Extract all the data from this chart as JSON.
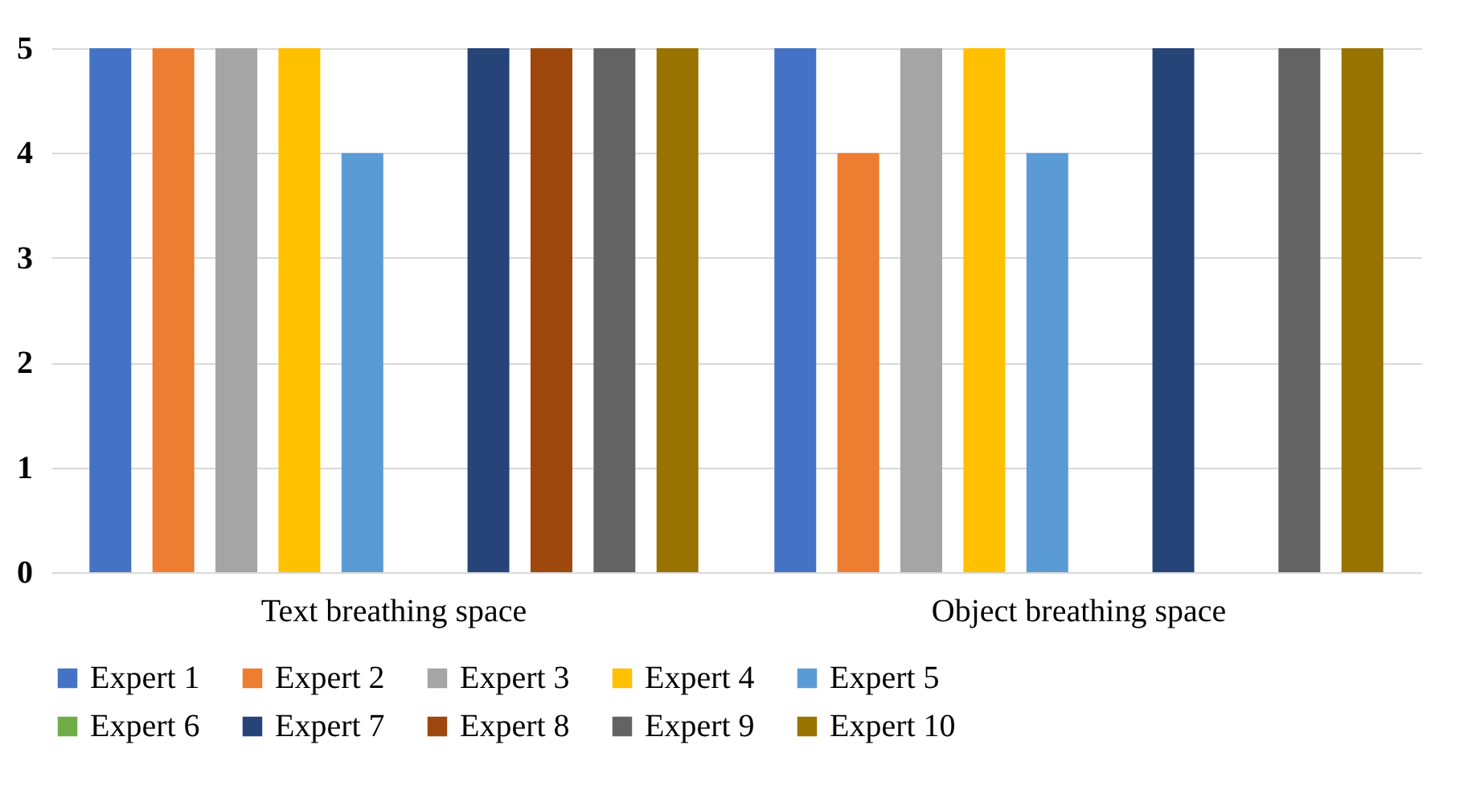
{
  "chart_data": {
    "type": "bar",
    "categories": [
      "Text breathing space",
      "Object breathing space"
    ],
    "series": [
      {
        "name": "Expert 1",
        "color": "#4472c4",
        "values": [
          5,
          5
        ]
      },
      {
        "name": "Expert 2",
        "color": "#ed7d31",
        "values": [
          5,
          4
        ]
      },
      {
        "name": "Expert 3",
        "color": "#a5a5a5",
        "values": [
          5,
          5
        ]
      },
      {
        "name": "Expert 4",
        "color": "#ffc000",
        "values": [
          5,
          5
        ]
      },
      {
        "name": "Expert 5",
        "color": "#5b9bd5",
        "values": [
          4,
          4
        ]
      },
      {
        "name": "Expert 6",
        "color": "#70ad47",
        "values": [
          0,
          0
        ]
      },
      {
        "name": "Expert 7",
        "color": "#264478",
        "values": [
          5,
          5
        ]
      },
      {
        "name": "Expert 8",
        "color": "#9e480e",
        "values": [
          5,
          0
        ]
      },
      {
        "name": "Expert 9",
        "color": "#636363",
        "values": [
          5,
          5
        ]
      },
      {
        "name": "Expert 10",
        "color": "#997300",
        "values": [
          5,
          5
        ]
      }
    ],
    "ylim": [
      0,
      5
    ],
    "yticks": [
      0,
      1,
      2,
      3,
      4,
      5
    ],
    "grid": "y",
    "legend": "bottom"
  }
}
